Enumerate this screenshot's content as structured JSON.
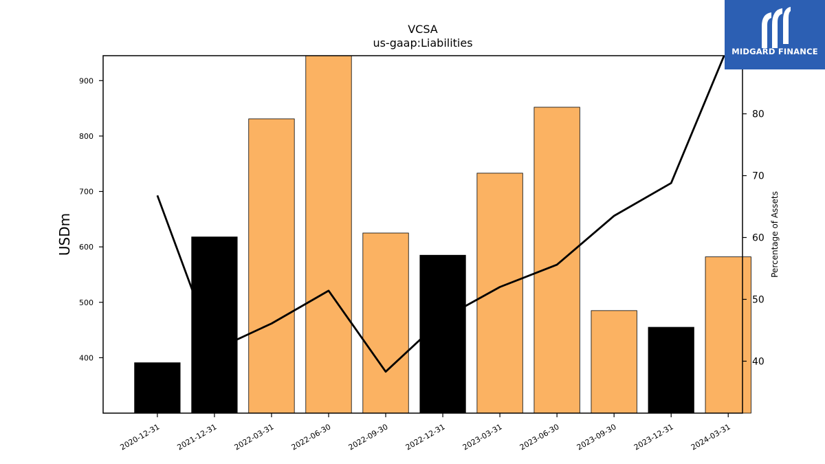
{
  "chart_data": {
    "type": "bar",
    "title": "VCSA",
    "subtitle": "us-gaap:Liabilities",
    "ylabel": "USDm",
    "y2label": "Percentage of Assets",
    "categories": [
      "2020-12-31",
      "2021-12-31",
      "2022-03-31",
      "2022-06-30",
      "2022-09-30",
      "2022-12-31",
      "2023-03-31",
      "2023-06-30",
      "2023-09-30",
      "2023-12-31",
      "2024-03-31"
    ],
    "values": [
      391,
      618,
      831,
      946,
      625,
      585,
      733,
      852,
      485,
      455,
      582
    ],
    "bar_colors": [
      "#000000",
      "#000000",
      "#fbb262",
      "#fbb262",
      "#fbb262",
      "#000000",
      "#fbb262",
      "#fbb262",
      "#fbb262",
      "#000000",
      "#fbb262"
    ],
    "ylim": [
      300,
      945
    ],
    "yticks": [
      400,
      500,
      600,
      700,
      800,
      900
    ],
    "line_series": {
      "axis": "right",
      "values": [
        66.8,
        41.8,
        46.1,
        51.4,
        38.3,
        46.9,
        52.0,
        55.6,
        63.5,
        68.8,
        91.0
      ],
      "color": "#000000"
    },
    "y2lim": [
      31.6,
      89.4
    ],
    "y2ticks": [
      40,
      50,
      60,
      70,
      80
    ]
  },
  "logo": {
    "text": "MIDGARD FINANCE"
  }
}
